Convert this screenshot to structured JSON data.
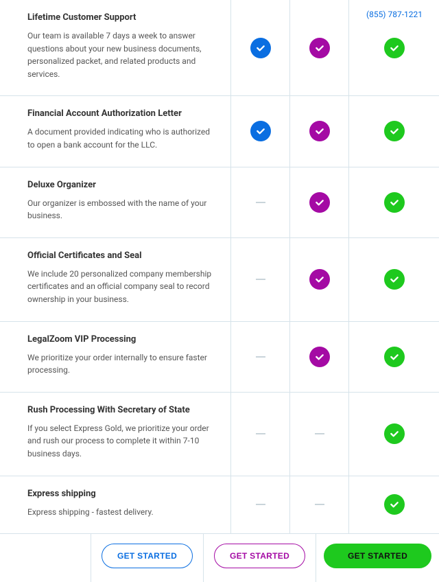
{
  "phone": "(855) 787-1221",
  "colors": {
    "blue": "#0a6ee1",
    "purple": "#a40aa4",
    "green": "#1ec91e"
  },
  "features": [
    {
      "title": "Lifetime Customer Support",
      "desc": "Our team is available 7 days a week to answer questions about your new business documents, personalized packet, and related products and services.",
      "cols": [
        "blue",
        "purple",
        "green"
      ]
    },
    {
      "title": "Financial Account Authorization Letter",
      "desc": "A document provided indicating who is authorized to open a bank account for the LLC.",
      "cols": [
        "blue",
        "purple",
        "green"
      ]
    },
    {
      "title": "Deluxe Organizer",
      "desc": "Our organizer is embossed with the name of your business.",
      "cols": [
        "dash",
        "purple",
        "green"
      ]
    },
    {
      "title": "Official Certificates and Seal",
      "desc": "We include 20 personalized company membership certificates and an official company seal to record ownership in your business.",
      "cols": [
        "dash",
        "purple",
        "green"
      ]
    },
    {
      "title": "LegalZoom VIP Processing",
      "desc": "We prioritize your order internally to ensure faster processing.",
      "cols": [
        "dash",
        "purple",
        "green"
      ]
    },
    {
      "title": "Rush Processing With Secretary of State",
      "desc": "If you select Express Gold, we prioritize your order and rush our process to complete it within 7-10 business days.",
      "cols": [
        "dash",
        "dash",
        "green"
      ]
    },
    {
      "title": "Express shipping",
      "desc": "Express shipping - fastest delivery.",
      "cols": [
        "dash",
        "dash",
        "green"
      ]
    }
  ],
  "cta": {
    "label": "GET STARTED",
    "variants": [
      "blue",
      "purple",
      "green"
    ]
  }
}
